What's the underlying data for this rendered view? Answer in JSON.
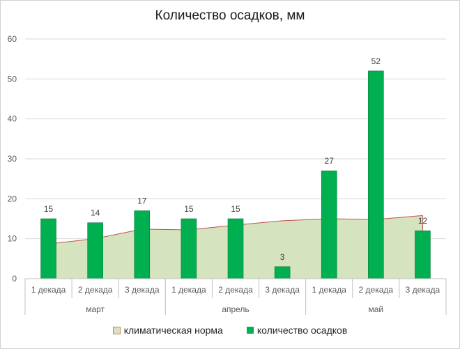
{
  "chart_data": {
    "type": "bar",
    "title": "Количество осадков, мм",
    "groups": [
      {
        "label": "март",
        "categories": [
          "1 декада",
          "2 декада",
          "3 декада"
        ]
      },
      {
        "label": "апрель",
        "categories": [
          "1 декада",
          "2 декада",
          "3 декада"
        ]
      },
      {
        "label": "май",
        "categories": [
          "1 декада",
          "2 декада",
          "3 декада"
        ]
      }
    ],
    "series": [
      {
        "name": "климатическая норма",
        "type": "area",
        "color": "#d5e4bf",
        "line_color": "#c0504d",
        "values": [
          8.7,
          10,
          12.4,
          12.2,
          13.4,
          14.5,
          15,
          14.8,
          15.8
        ]
      },
      {
        "name": "количество осадков",
        "type": "bar",
        "color": "#00b050",
        "values": [
          15,
          14,
          17,
          15,
          15,
          3,
          27,
          52,
          12
        ]
      }
    ],
    "ylim": [
      0,
      60
    ],
    "yticks": [
      0,
      10,
      20,
      30,
      40,
      50,
      60
    ],
    "grid": true,
    "legend_position": "bottom"
  }
}
